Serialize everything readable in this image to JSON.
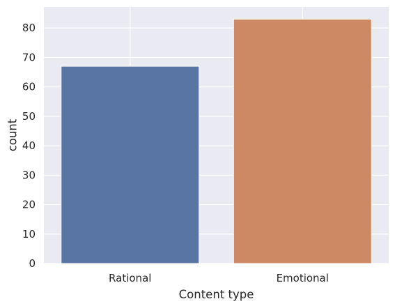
{
  "chart_data": {
    "type": "bar",
    "title": "",
    "xlabel": "Content type",
    "ylabel": "count",
    "categories": [
      "Rational",
      "Emotional"
    ],
    "values": [
      67,
      83
    ],
    "ylim": [
      0,
      87.15
    ],
    "yticks": [
      0,
      10,
      20,
      30,
      40,
      50,
      60,
      70,
      80
    ],
    "grid": true,
    "legend": "none",
    "colors": {
      "background": "#eaeaf2",
      "grid": "#ffffff",
      "bars": [
        "#5875a4",
        "#cc8963"
      ],
      "text": "#262626"
    }
  }
}
